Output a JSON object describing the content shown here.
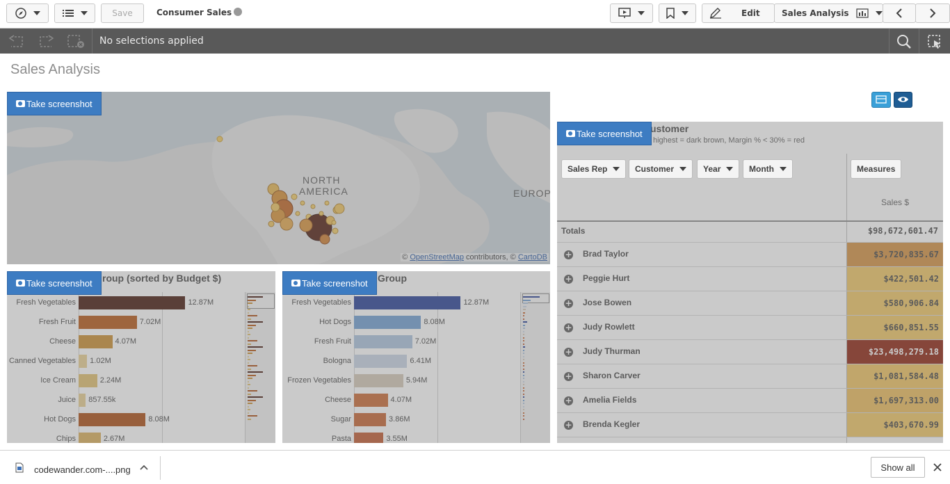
{
  "toolbar": {
    "save_label": "Save",
    "app_title": "Consumer Sales",
    "edit_label": "Edit",
    "sheet_name": "Sales Analysis"
  },
  "selections": {
    "text": "No selections applied"
  },
  "sheet": {
    "title": "Sales Analysis"
  },
  "screenshot_label": "Take screenshot",
  "map": {
    "region_label_1": "NORTH",
    "region_label_2": "AMERICA",
    "region_label_3": "EUROP",
    "attribution_prefix": "©",
    "osm_link": "OpenStreetMap",
    "attribution_mid": "contributors, ©",
    "carto_link": "CartoDB"
  },
  "chart1": {
    "title_visible": "roup (sorted by Budget $)"
  },
  "chart2": {
    "title_visible": "Group"
  },
  "chart_data": [
    {
      "type": "bar",
      "orientation": "horizontal",
      "title": "roup (sorted by Budget $)",
      "categories": [
        "Fresh Vegetables",
        "Fresh Fruit",
        "Cheese",
        "Canned Vegetables",
        "Ice Cream",
        "Juice",
        "Hot Dogs",
        "Chips"
      ],
      "values": [
        12870000,
        7020000,
        4070000,
        1020000,
        2240000,
        857550,
        8080000,
        2670000
      ],
      "value_labels": [
        "12.87M",
        "7.02M",
        "4.07M",
        "1.02M",
        "2.24M",
        "857.55k",
        "8.08M",
        "2.67M"
      ],
      "colors": [
        "#3f1005",
        "#b4520e",
        "#c98a2a",
        "#e9cf8f",
        "#e1bd6a",
        "#e7cd8e",
        "#a9470b",
        "#d9ac55"
      ],
      "xlim": [
        0,
        13000000
      ]
    },
    {
      "type": "bar",
      "orientation": "horizontal",
      "title": "Group",
      "categories": [
        "Fresh Vegetables",
        "Hot Dogs",
        "Fresh Fruit",
        "Bologna",
        "Frozen Vegetables",
        "Cheese",
        "Sugar",
        "Pasta"
      ],
      "values": [
        12870000,
        8080000,
        7020000,
        6410000,
        5940000,
        4070000,
        3860000,
        3550000
      ],
      "value_labels": [
        "12.87M",
        "8.08M",
        "7.02M",
        "6.41M",
        "5.94M",
        "4.07M",
        "3.86M",
        "3.55M"
      ],
      "colors": [
        "#1f3a93",
        "#6b9bd1",
        "#a9c1dd",
        "#c6d2e3",
        "#d3c6b6",
        "#c9642e",
        "#c45f2b",
        "#c0552a"
      ],
      "xlim": [
        0,
        13000000
      ]
    }
  ],
  "pivot": {
    "title_visible": "ustomer",
    "subtitle_visible": "highest = dark brown, Margin % < 30% = red",
    "filters": [
      "Sales Rep",
      "Customer",
      "Year",
      "Month"
    ],
    "measures_label": "Measures",
    "measure_header": "Sales $",
    "totals_label": "Totals",
    "totals_value": "$98,672,601.47",
    "rows": [
      {
        "name": "Brad Taylor",
        "value": "$3,720,835.67",
        "color": "#d28e3c"
      },
      {
        "name": "Peggie Hurt",
        "value": "$422,501.42",
        "color": "#f0c460"
      },
      {
        "name": "Jose Bowen",
        "value": "$580,906.84",
        "color": "#f0c460"
      },
      {
        "name": "Judy Rowlett",
        "value": "$660,851.55",
        "color": "#f0c460"
      },
      {
        "name": "Judy Thurman",
        "value": "$23,498,279.18",
        "color": "#8a1d07"
      },
      {
        "name": "Sharon Carver",
        "value": "$1,081,584.48",
        "color": "#efc15c"
      },
      {
        "name": "Amelia Fields",
        "value": "$1,697,313.00",
        "color": "#ecbb56"
      },
      {
        "name": "Brenda Kegler",
        "value": "$403,670.99",
        "color": "#f0c460"
      }
    ]
  },
  "download": {
    "file_name": "codewander.com-....png",
    "show_all": "Show all"
  }
}
